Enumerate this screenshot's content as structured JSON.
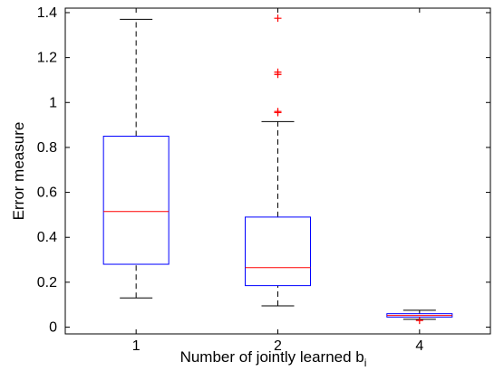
{
  "chart_data": {
    "type": "boxplot",
    "title": "",
    "xlabel": "Number of jointly learned b",
    "xlabel_subscript": "i",
    "ylabel": "Error measure",
    "ylim": [
      -0.03,
      1.42
    ],
    "yticks": [
      0,
      0.2,
      0.4,
      0.6,
      0.8,
      1,
      1.2,
      1.4
    ],
    "ytick_labels": [
      "0",
      "0.2",
      "0.4",
      "0.6",
      "0.8",
      "1",
      "1.2",
      "1.4"
    ],
    "grid": false,
    "categories": [
      "1",
      "2",
      "4"
    ],
    "boxes": [
      {
        "category": "1",
        "lower_whisker": 0.13,
        "q1": 0.28,
        "median": 0.515,
        "q3": 0.85,
        "upper_whisker": 1.37,
        "outliers": []
      },
      {
        "category": "2",
        "lower_whisker": 0.095,
        "q1": 0.185,
        "median": 0.265,
        "q3": 0.49,
        "upper_whisker": 0.915,
        "outliers": [
          0.955,
          0.96,
          1.125,
          1.135,
          1.375
        ]
      },
      {
        "category": "4",
        "lower_whisker": 0.035,
        "q1": 0.045,
        "median": 0.052,
        "q3": 0.06,
        "upper_whisker": 0.075,
        "outliers": [
          0.03
        ]
      }
    ],
    "colors": {
      "box": "#0000ff",
      "median": "#ff0000",
      "whisker": "#000000",
      "outlier": "#ff0000"
    }
  }
}
